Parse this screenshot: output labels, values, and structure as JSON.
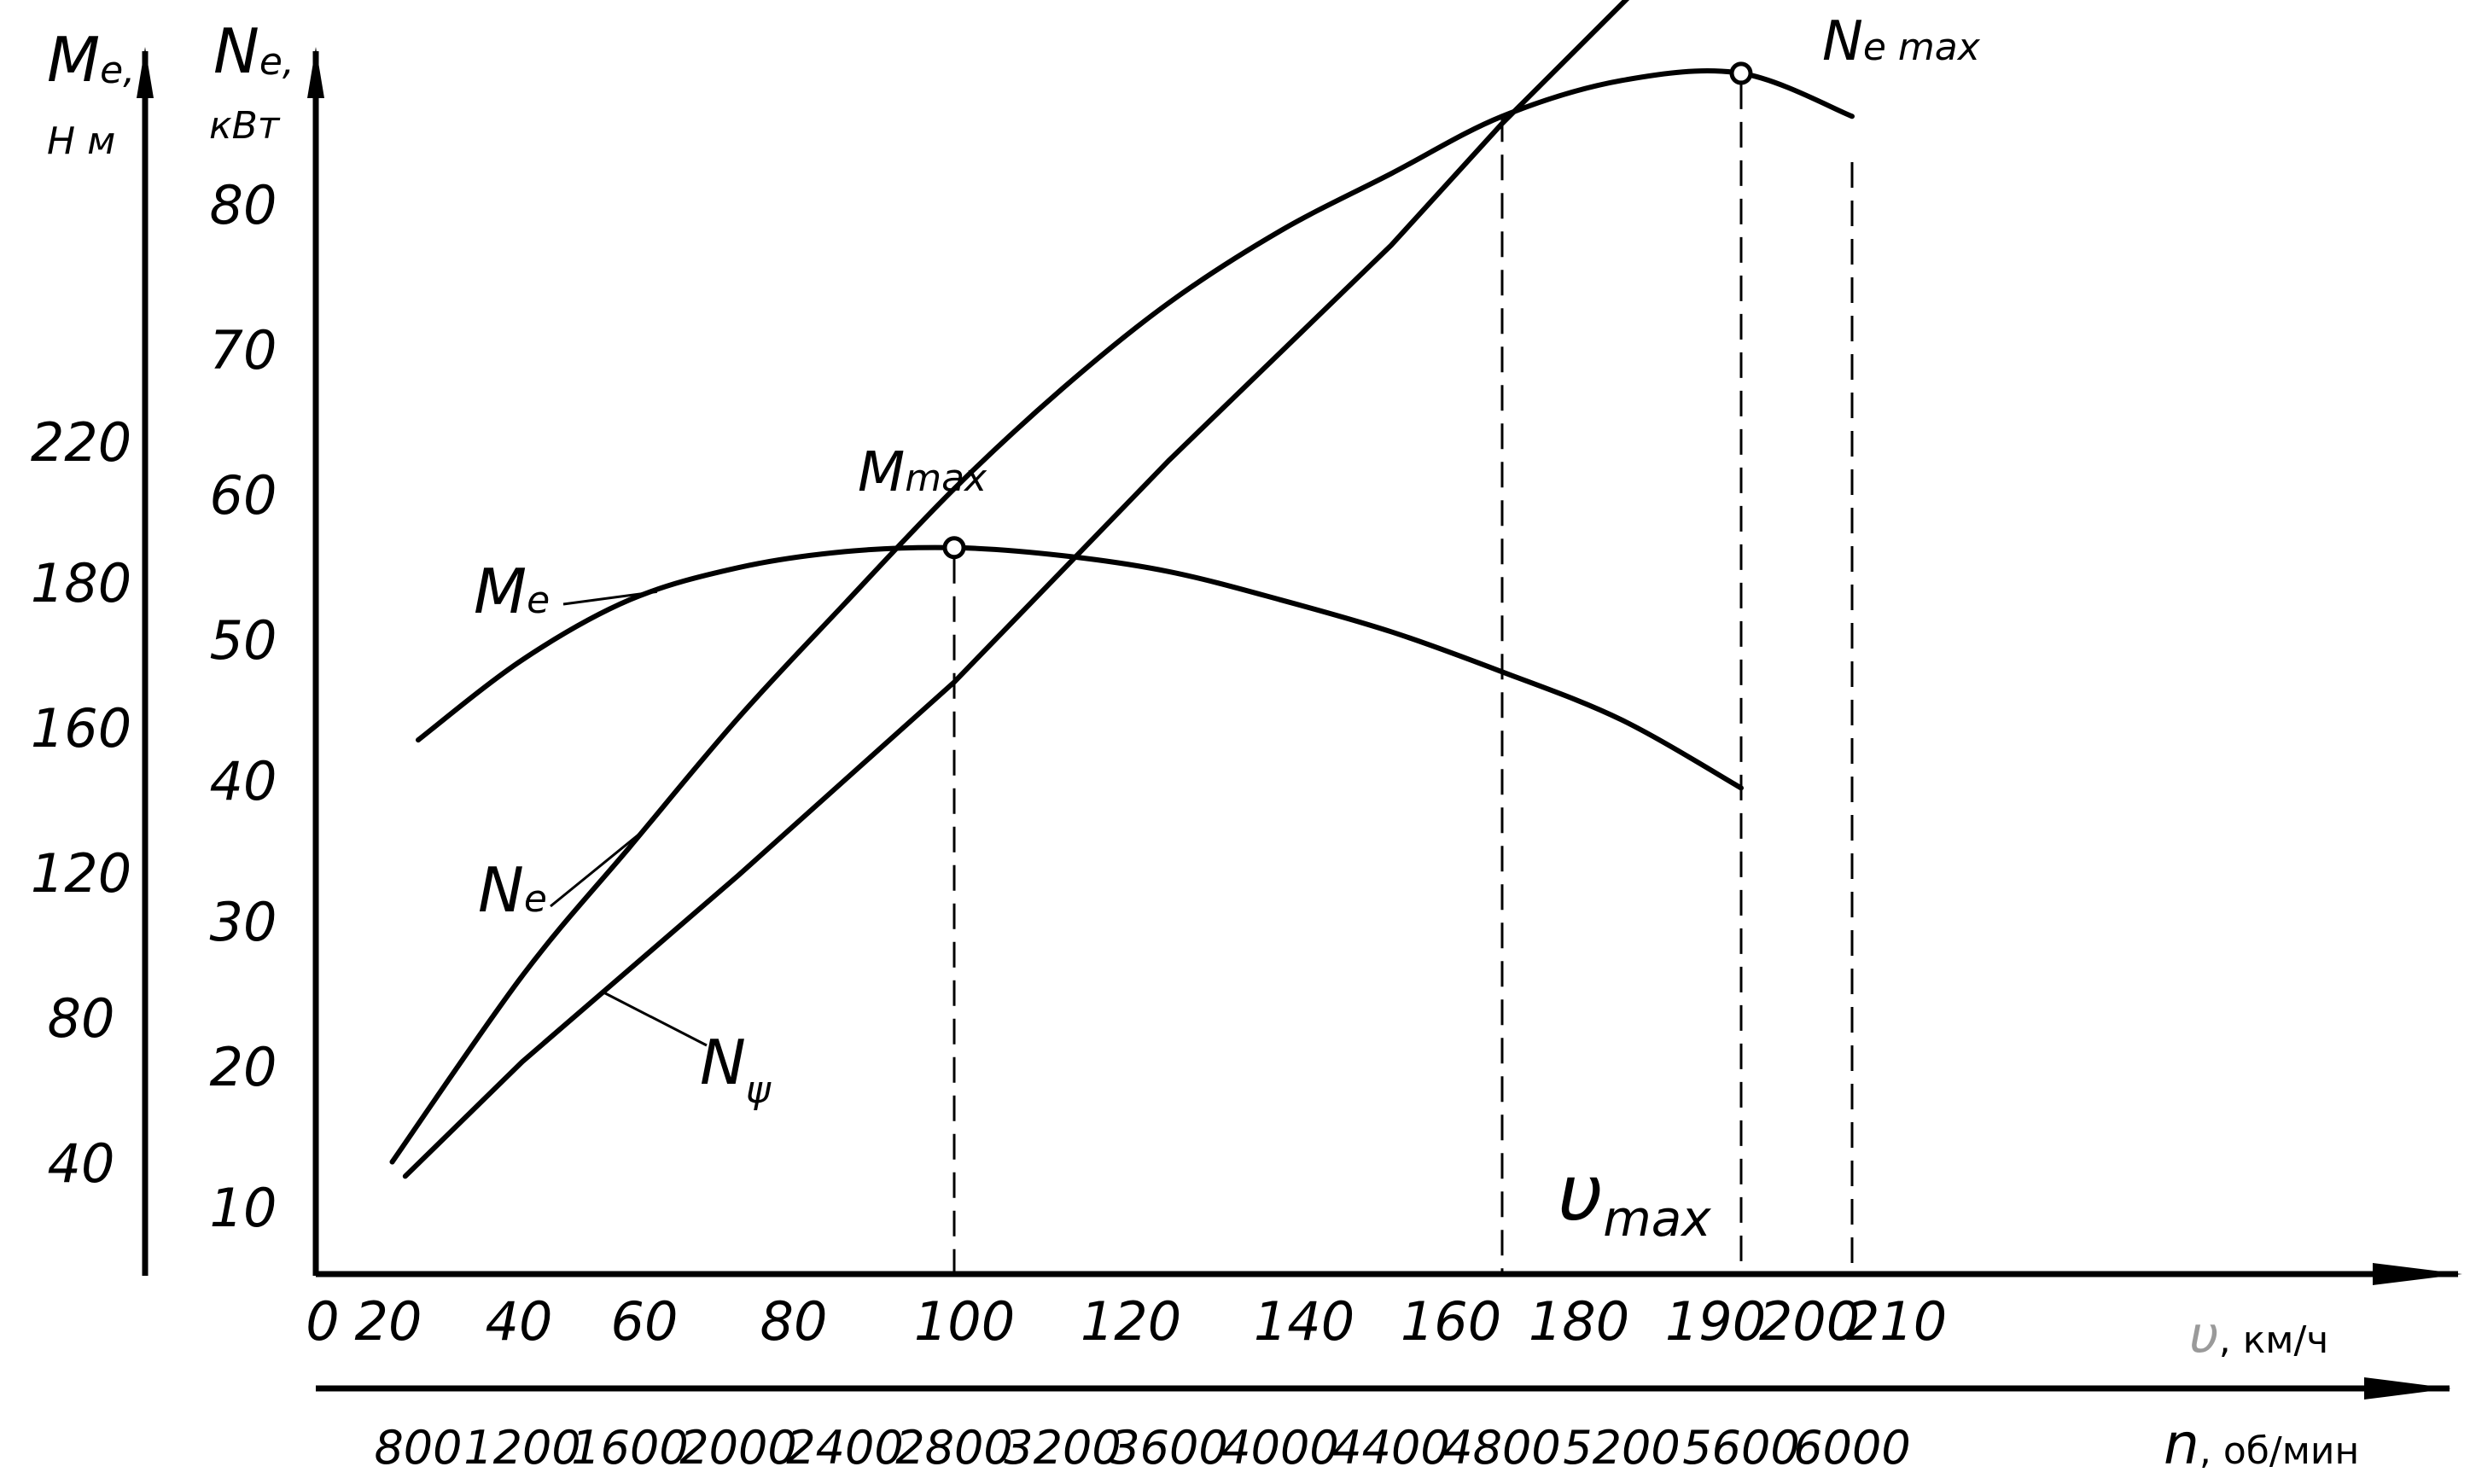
{
  "chart_data": {
    "type": "line",
    "title": "",
    "axes": {
      "left_me": {
        "symbol": "M",
        "sub": "e,",
        "unit": "Н м",
        "ticks": [
          "40",
          "80",
          "120",
          "160",
          "180",
          "220"
        ]
      },
      "left_ne": {
        "symbol": "N",
        "sub": "e,",
        "unit": "кВт",
        "ticks": [
          "10",
          "20",
          "30",
          "40",
          "50",
          "60",
          "70",
          "80"
        ]
      },
      "bottom_speed": {
        "symbol": "υ",
        "unit": ", км/ч",
        "ticks": [
          "0",
          "20",
          "40",
          "60",
          "80",
          "100",
          "120",
          "140",
          "160",
          "180",
          "190",
          "200",
          "210"
        ]
      },
      "bottom_rpm": {
        "symbol": "n",
        "unit": ", об/мин",
        "ticks": [
          "800",
          "1200",
          "1600",
          "2000",
          "2400",
          "2800",
          "3200",
          "3600",
          "4000",
          "4400",
          "4800",
          "5200",
          "5600",
          "6000"
        ]
      }
    },
    "x_unit": "об/мин",
    "series": [
      {
        "name": "Me",
        "label": {
          "symbol": "M",
          "sub": "e"
        },
        "unit": "Н м",
        "x": [
          800,
          1200,
          1600,
          2000,
          2400,
          2800,
          3200,
          3600,
          4000,
          4400,
          4800,
          5200,
          5600
        ],
        "values": [
          145,
          165,
          180,
          188,
          192,
          193,
          191,
          187,
          180,
          172,
          162,
          150,
          133
        ]
      },
      {
        "name": "Ne",
        "label": {
          "symbol": "N",
          "sub": "e"
        },
        "unit": "кВт",
        "x": [
          700,
          1200,
          1600,
          2000,
          2400,
          2800,
          3200,
          3600,
          4000,
          4400,
          4800,
          5200,
          5600,
          6000
        ],
        "values": [
          13,
          26,
          35,
          44,
          52,
          60,
          67,
          73,
          78,
          82,
          86,
          88.5,
          89,
          86
        ]
      },
      {
        "name": "Nψ",
        "label": {
          "symbol": "N",
          "sub": "ψ"
        },
        "unit": "кВт",
        "x": [
          750,
          1200,
          2000,
          2800,
          3600,
          4400,
          4800,
          5400
        ],
        "values": [
          12,
          20,
          33,
          46.5,
          62,
          77,
          85.5,
          98
        ]
      }
    ],
    "annotations": {
      "m_max": {
        "symbol": "M",
        "sub": "max",
        "x": 2800
      },
      "ne_max": {
        "symbol": "N",
        "sub": "e max",
        "x": 5600
      },
      "v_max": {
        "symbol": "υ",
        "sub": "max",
        "x": 4800
      }
    },
    "extra_dashed_x": 6000
  }
}
